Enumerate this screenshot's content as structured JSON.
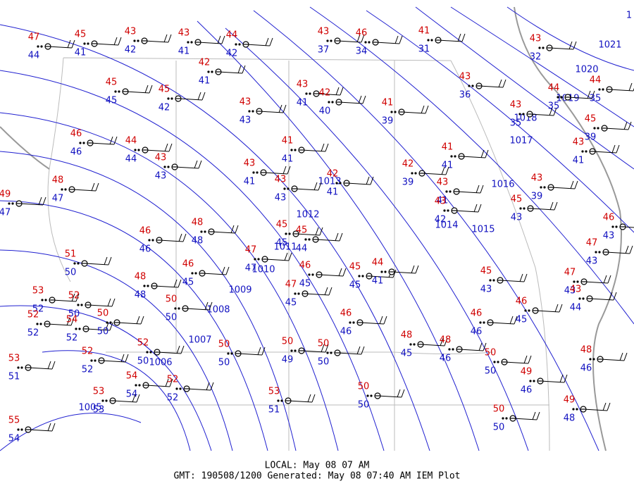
{
  "stations": [
    {
      "temp": 47,
      "dewpoint": 44
    },
    {
      "temp": 45,
      "dewpoint": 41
    },
    {
      "temp": 43,
      "dewpoint": 42
    },
    {
      "temp": 43,
      "dewpoint": 41
    },
    {
      "temp": 44,
      "dewpoint": 42
    },
    {
      "temp": 43,
      "dewpoint": 37
    },
    {
      "temp": 46,
      "dewpoint": 34
    },
    {
      "temp": 41,
      "dewpoint": 31
    },
    {
      "temp": 43,
      "dewpoint": 32
    },
    {
      "temp": 42,
      "dewpoint": 41
    },
    {
      "temp": 45,
      "dewpoint": 45
    },
    {
      "temp": 45,
      "dewpoint": 42
    },
    {
      "temp": 43,
      "dewpoint": 41
    },
    {
      "temp": 42,
      "dewpoint": 40
    },
    {
      "temp": 43,
      "dewpoint": 43
    },
    {
      "temp": 41,
      "dewpoint": 39
    },
    {
      "temp": 43,
      "dewpoint": 36
    },
    {
      "temp": 43,
      "dewpoint": 35
    },
    {
      "temp": 44,
      "dewpoint": 35
    },
    {
      "temp": 44,
      "dewpoint": 35
    },
    {
      "temp": 45,
      "dewpoint": 39
    },
    {
      "temp": 46,
      "dewpoint": 46
    },
    {
      "temp": 44,
      "dewpoint": 44
    },
    {
      "temp": 43,
      "dewpoint": 43
    },
    {
      "temp": 41,
      "dewpoint": 41
    },
    {
      "temp": 41,
      "dewpoint": 41
    },
    {
      "temp": 43,
      "dewpoint": 41
    },
    {
      "temp": 43,
      "dewpoint": 43
    },
    {
      "temp": 42,
      "dewpoint": 41
    },
    {
      "temp": 42,
      "dewpoint": 39
    },
    {
      "temp": 43,
      "dewpoint": 41
    },
    {
      "temp": 43,
      "dewpoint": 41
    },
    {
      "temp": 43,
      "dewpoint": 42
    },
    {
      "temp": 43,
      "dewpoint": 39
    },
    {
      "temp": 45,
      "dewpoint": 43
    },
    {
      "temp": 46,
      "dewpoint": 43
    },
    {
      "temp": 48,
      "dewpoint": 47
    },
    {
      "temp": 49,
      "dewpoint": 47
    },
    {
      "temp": 48,
      "dewpoint": 48
    },
    {
      "temp": 46,
      "dewpoint": 46
    },
    {
      "temp": 45,
      "dewpoint": 45
    },
    {
      "temp": 45,
      "dewpoint": 44
    },
    {
      "temp": 47,
      "dewpoint": 47
    },
    {
      "temp": 51,
      "dewpoint": 50
    },
    {
      "temp": 46,
      "dewpoint": 45
    },
    {
      "temp": 48,
      "dewpoint": 48
    },
    {
      "temp": 46,
      "dewpoint": 45
    },
    {
      "temp": 45,
      "dewpoint": 45
    },
    {
      "temp": 44,
      "dewpoint": 41
    },
    {
      "temp": 45,
      "dewpoint": 43
    },
    {
      "temp": 47,
      "dewpoint": 43
    },
    {
      "temp": 47,
      "dewpoint": 43
    },
    {
      "temp": 43,
      "dewpoint": 44
    },
    {
      "temp": 53,
      "dewpoint": 52
    },
    {
      "temp": 52,
      "dewpoint": 50
    },
    {
      "temp": 50,
      "dewpoint": 50
    },
    {
      "temp": 47,
      "dewpoint": 45
    },
    {
      "temp": 52,
      "dewpoint": 52
    },
    {
      "temp": 54,
      "dewpoint": 52
    },
    {
      "temp": 50,
      "dewpoint": 50
    },
    {
      "temp": 46,
      "dewpoint": 46
    },
    {
      "temp": 46,
      "dewpoint": 46
    },
    {
      "temp": 46,
      "dewpoint": 45
    },
    {
      "temp": 52,
      "dewpoint": 50
    },
    {
      "temp": 50,
      "dewpoint": 50
    },
    {
      "temp": 50,
      "dewpoint": 49
    },
    {
      "temp": 50,
      "dewpoint": 50
    },
    {
      "temp": 48,
      "dewpoint": 45
    },
    {
      "temp": 48,
      "dewpoint": 46
    },
    {
      "temp": 50,
      "dewpoint": 50
    },
    {
      "temp": 48,
      "dewpoint": 46
    },
    {
      "temp": 53,
      "dewpoint": 51
    },
    {
      "temp": 52,
      "dewpoint": 52
    },
    {
      "temp": 54,
      "dewpoint": 54
    },
    {
      "temp": 52,
      "dewpoint": 52
    },
    {
      "temp": 49,
      "dewpoint": 46
    },
    {
      "temp": 53,
      "dewpoint": 53
    },
    {
      "temp": 53,
      "dewpoint": 51
    },
    {
      "temp": 50,
      "dewpoint": 50
    },
    {
      "temp": 49,
      "dewpoint": 48
    },
    {
      "temp": 50,
      "dewpoint": 50
    },
    {
      "temp": 55,
      "dewpoint": 54
    }
  ],
  "isobars": [
    "1021",
    "1020",
    "1019",
    "1018",
    "1017",
    "1016",
    "1015",
    "1014",
    "1013",
    "1012",
    "1011",
    "1010",
    "1009",
    "1008",
    "1007",
    "1006",
    "1005",
    "1"
  ],
  "footer": {
    "local": "LOCAL: May 08 07 AM",
    "gmt": "GMT: 190508/1200 Generated: May 08 07:40 AM IEM Plot"
  }
}
